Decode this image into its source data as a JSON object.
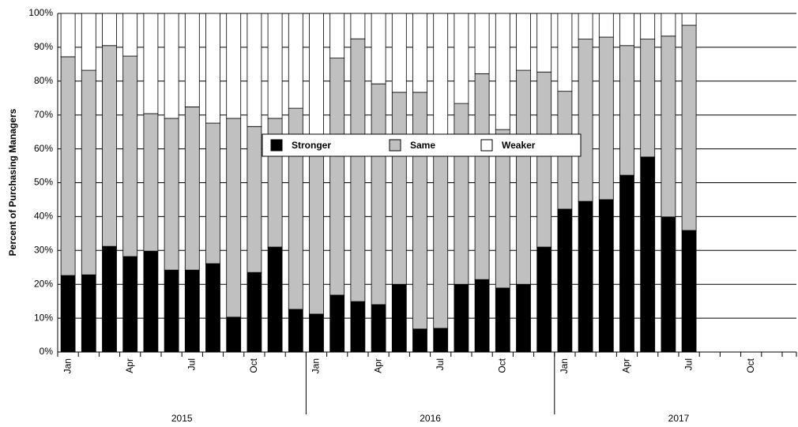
{
  "chart_data": {
    "type": "stacked_bar",
    "y_label": "Percent of Purchasing Managers",
    "categories": [
      "Jan",
      null,
      null,
      "Apr",
      null,
      null,
      "Jul",
      null,
      null,
      "Oct",
      null,
      null,
      "Jan",
      null,
      null,
      "Apr",
      null,
      null,
      "Jul",
      null,
      null,
      "Oct",
      null,
      null,
      "Jan",
      null,
      null,
      "Apr",
      null,
      null,
      "Jul",
      null,
      null,
      "Oct",
      null,
      null
    ],
    "groups": [
      "2015",
      "2016",
      "2017"
    ],
    "series": [
      {
        "name": "Stronger",
        "color": "#000000",
        "values": [
          22.6,
          22.8,
          31.2,
          28.2,
          29.8,
          24.2,
          24.2,
          26.1,
          10.3,
          23.5,
          31.0,
          12.6,
          11.2,
          16.8,
          14.9,
          14.0,
          20.0,
          6.8,
          7.0,
          20.0,
          21.4,
          18.9,
          20.0,
          31.0,
          42.2,
          44.5,
          45.0,
          52.2,
          57.6,
          39.9,
          35.9,
          null,
          null,
          null,
          null,
          null
        ]
      },
      {
        "name": "Same",
        "color": "#c0c0c0",
        "values": [
          64.6,
          60.4,
          59.3,
          59.2,
          40.6,
          44.8,
          48.2,
          41.5,
          58.7,
          43.1,
          38.0,
          59.4,
          51.8,
          70.0,
          77.6,
          65.2,
          56.7,
          69.9,
          55.0,
          53.4,
          60.8,
          46.8,
          63.2,
          51.7,
          34.8,
          47.9,
          48.0,
          38.3,
          34.8,
          53.4,
          60.6,
          null,
          null,
          null,
          null,
          null
        ]
      },
      {
        "name": "Weaker",
        "color": "#ffffff",
        "values": [
          12.8,
          16.8,
          9.5,
          12.6,
          29.6,
          31.0,
          27.6,
          32.4,
          31.0,
          33.4,
          31.0,
          28.0,
          37.0,
          13.2,
          7.5,
          20.8,
          23.3,
          23.3,
          38.0,
          26.6,
          17.8,
          34.3,
          16.8,
          17.3,
          23.0,
          7.6,
          7.0,
          9.5,
          7.6,
          6.7,
          3.5,
          null,
          null,
          null,
          null,
          null
        ]
      }
    ],
    "ylim": [
      0,
      100
    ],
    "yticks": [
      {
        "value": 0,
        "label": "0%"
      },
      {
        "value": 10,
        "label": "10%"
      },
      {
        "value": 20,
        "label": "20%"
      },
      {
        "value": 30,
        "label": "30%"
      },
      {
        "value": 40,
        "label": "40%"
      },
      {
        "value": 50,
        "label": "50%"
      },
      {
        "value": 60,
        "label": "60%"
      },
      {
        "value": 70,
        "label": "70%"
      },
      {
        "value": 80,
        "label": "80%"
      },
      {
        "value": 90,
        "label": "90%"
      },
      {
        "value": 100,
        "label": "100%"
      }
    ],
    "grid": true,
    "legend": "center"
  }
}
